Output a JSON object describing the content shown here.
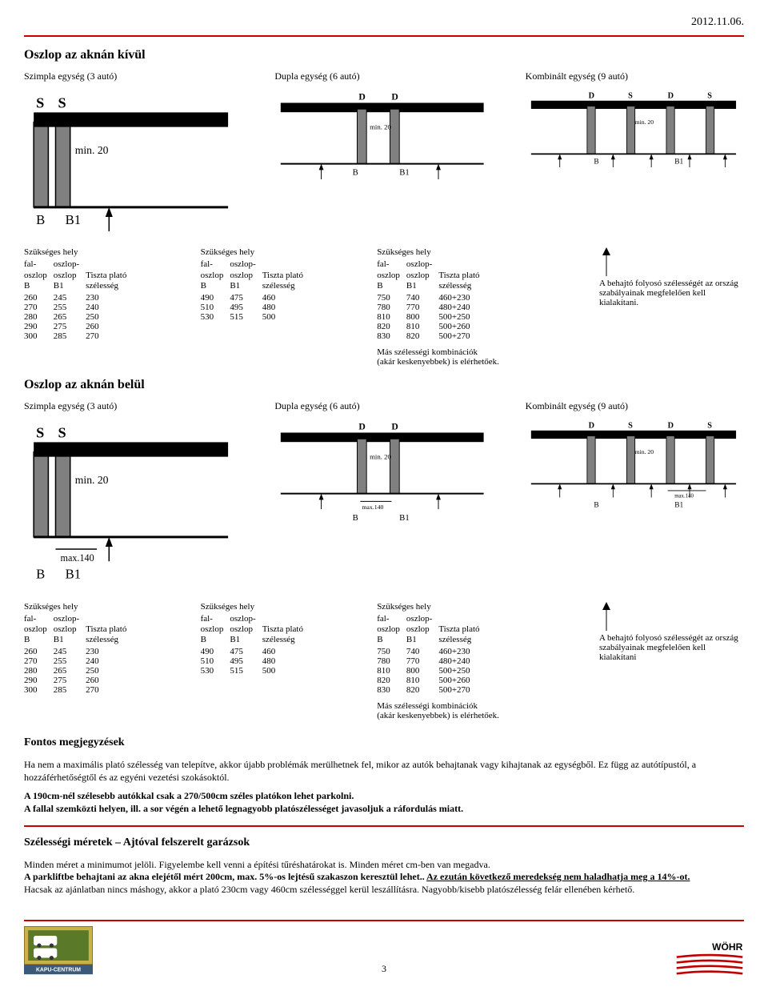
{
  "date": "2012.11.06.",
  "hr_color": "#cc0000",
  "section1": {
    "title": "Oszlop az aknán kívül",
    "units": {
      "szimpla": "Szimpla egység (3 autó)",
      "dupla": "Dupla egység (6 autó)",
      "kombinalt": "Kombinált egység (9 autó)"
    }
  },
  "section2": {
    "title": "Oszlop az aknán belül",
    "units": {
      "szimpla": "Szimpla egység (3 autó)",
      "dupla": "Dupla egység (6 autó)",
      "kombinalt": "Kombinált egység (9 autó)"
    }
  },
  "diagram": {
    "labels": {
      "S": "S",
      "D": "D",
      "B": "B",
      "B1": "B1",
      "min20": "min. 20",
      "max140": "max.140"
    },
    "colors": {
      "post": "#808080",
      "post_stroke": "#000000",
      "top": "#000000",
      "divider": "#000000",
      "ground": "#000000"
    }
  },
  "table_headers": {
    "szuks": "Szükséges hely",
    "fal": "fal-\noszlop\nB",
    "oszlop": "oszlop-\noszlop\nB1",
    "tiszta": "Tiszta plató\nszélesség"
  },
  "table_szimpla": {
    "rows": [
      [
        "260",
        "245",
        "230"
      ],
      [
        "270",
        "255",
        "240"
      ],
      [
        "280",
        "265",
        "250"
      ],
      [
        "290",
        "275",
        "260"
      ],
      [
        "300",
        "285",
        "270"
      ]
    ]
  },
  "table_dupla": {
    "rows": [
      [
        "490",
        "475",
        "460"
      ],
      [
        "510",
        "495",
        "480"
      ],
      [
        "530",
        "515",
        "500"
      ]
    ]
  },
  "table_kombinalt": {
    "rows": [
      [
        "750",
        "740",
        "460+230"
      ],
      [
        "780",
        "770",
        "480+240"
      ],
      [
        "810",
        "800",
        "500+250"
      ],
      [
        "820",
        "810",
        "500+260"
      ],
      [
        "830",
        "820",
        "500+270"
      ]
    ],
    "footnote": "Más szélességi kombinációk\n(akár keskenyebbek) is elérhetőek."
  },
  "side_note_1": "A behajtó folyosó szélességét az ország szabályainak megfelelően kell kialakítani.",
  "side_note_2": "A behajtó folyosó szélességét az ország szabályainak megfelelően kell kialakítani",
  "fontos": {
    "title": "Fontos megjegyzések",
    "p1": "Ha nem a maximális plató szélesség van telepítve, akkor újabb problémák merülhetnek fel, mikor az autók behajtanak vagy kihajtanak az egységből. Ez függ az autótípustól, a hozzáférhetőségtől és az egyéni vezetési szokásoktól.",
    "p2a": "A 190cm-nél szélesebb autókkal csak a 270/500cm széles platókon lehet parkolni.",
    "p2b": "A fallal szemközti helyen, ill. a sor végén a lehető legnagyobb platószélességet javasoljuk a ráfordulás miatt."
  },
  "szel": {
    "title": "Szélességi méretek – Ajtóval felszerelt garázsok",
    "p1": "Minden méret a minimumot jelöli. Figyelembe kell venni a építési tűréshatárokat is. Minden méret cm-ben van megadva.",
    "p2a": "A parkliftbe behajtani az akna elejétől mért 200cm, max. 5%-os lejtésű szakaszon keresztül lehet.. ",
    "p2b": "Az ezután következő meredekség nem haladhatja meg a 14%-ot.",
    "p3": "Hacsak az ajánlatban nincs máshogy, akkor a plató 230cm vagy 460cm szélességgel kerül leszállításra. Nagyobb/kisebb platószélesség felár ellenében kérhető."
  },
  "page_number": "3",
  "logos": {
    "left": {
      "text_top": "KAPU-CENTRUM",
      "bg": "#5a7a2a",
      "bg2": "#c9b24a",
      "car": "#ffffff",
      "border": "#8a6a18"
    },
    "right": {
      "text": "WÖHR",
      "stripe": "#c00000",
      "text_color": "#000000"
    }
  }
}
